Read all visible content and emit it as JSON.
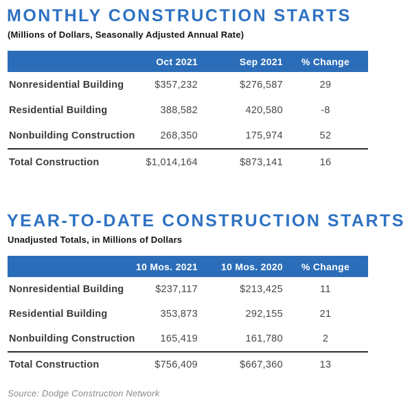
{
  "colors": {
    "title_blue": "#2E72C2",
    "header_bar_blue": "#2B6DB8",
    "label_text": "#3A3A3A",
    "value_text": "#474747",
    "source_text": "#8A8A8A"
  },
  "sections": [
    {
      "title": "MONTHLY CONSTRUCTION STARTS",
      "subtitle": "(Millions of Dollars, Seasonally Adjusted Annual Rate)",
      "columns": {
        "col1": "Oct 2021",
        "col2": "Sep 2021",
        "col3": "% Change"
      },
      "rows": [
        {
          "label": "Nonresidential Building",
          "col1": "$357,232",
          "col2": "$276,587",
          "change": "29"
        },
        {
          "label": "Residential Building",
          "col1": "388,582",
          "col2": "420,580",
          "change": "-8"
        },
        {
          "label": "Nonbuilding Construction",
          "col1": "268,350",
          "col2": "175,974",
          "change": "52"
        }
      ],
      "total": {
        "label": "Total Construction",
        "col1": "$1,014,164",
        "col2": "$873,141",
        "change": "16"
      }
    },
    {
      "title": "YEAR-TO-DATE CONSTRUCTION STARTS",
      "subtitle": "Unadjusted Totals, in Millions of Dollars",
      "columns": {
        "col1": "10 Mos. 2021",
        "col2": "10 Mos. 2020",
        "col3": "% Change"
      },
      "rows": [
        {
          "label": "Nonresidential Building",
          "col1": "$237,117",
          "col2": "$213,425",
          "change": "11"
        },
        {
          "label": "Residential Building",
          "col1": "353,873",
          "col2": "292,155",
          "change": "21"
        },
        {
          "label": "Nonbuilding Construction",
          "col1": "165,419",
          "col2": "161,780",
          "change": "2"
        }
      ],
      "total": {
        "label": "Total Construction",
        "col1": "$756,409",
        "col2": "$667,360",
        "change": "13"
      }
    }
  ],
  "footer": {
    "source": "Source: Dodge Construction Network"
  },
  "chart_data": [
    {
      "type": "table",
      "title": "MONTHLY CONSTRUCTION STARTS",
      "subtitle": "(Millions of Dollars, Seasonally Adjusted Annual Rate)",
      "columns": [
        "",
        "Oct 2021",
        "Sep 2021",
        "% Change"
      ],
      "rows": [
        [
          "Nonresidential Building",
          357232,
          276587,
          29
        ],
        [
          "Residential Building",
          388582,
          420580,
          -8
        ],
        [
          "Nonbuilding Construction",
          268350,
          175974,
          52
        ],
        [
          "Total Construction",
          1014164,
          873141,
          16
        ]
      ]
    },
    {
      "type": "table",
      "title": "YEAR-TO-DATE CONSTRUCTION STARTS",
      "subtitle": "Unadjusted Totals, in Millions of Dollars",
      "columns": [
        "",
        "10 Mos. 2021",
        "10 Mos. 2020",
        "% Change"
      ],
      "rows": [
        [
          "Nonresidential Building",
          237117,
          213425,
          11
        ],
        [
          "Residential Building",
          353873,
          292155,
          21
        ],
        [
          "Nonbuilding Construction",
          165419,
          161780,
          2
        ],
        [
          "Total Construction",
          756409,
          667360,
          13
        ]
      ]
    }
  ]
}
